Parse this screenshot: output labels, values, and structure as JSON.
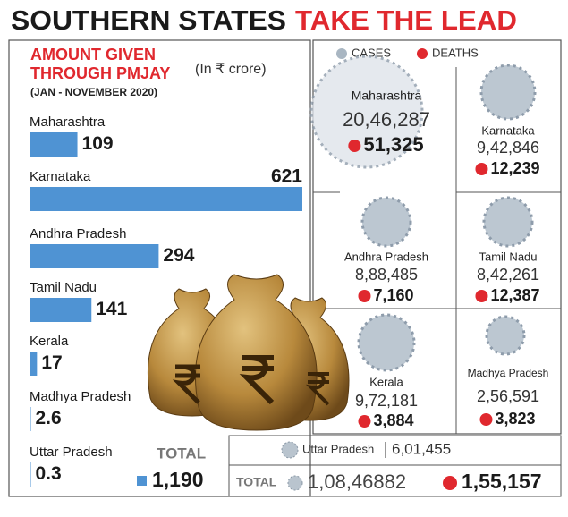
{
  "header": {
    "title_part1": "SOUTHERN STATES",
    "title_part2": "TAKE THE LEAD"
  },
  "chart_data": {
    "type": "bar",
    "orientation": "horizontal",
    "title_line1": "AMOUNT GIVEN",
    "title_line2": "THROUGH PMJAY",
    "subtitle": "(In ₹ crore)",
    "period": "(JAN - NOVEMBER 2020)",
    "categories": [
      "Maharashtra",
      "Karnataka",
      "Andhra Pradesh",
      "Tamil Nadu",
      "Kerala",
      "Madhya Pradesh",
      "Uttar Pradesh"
    ],
    "values": [
      109,
      621,
      294,
      141,
      17,
      2.6,
      0.3
    ],
    "color": "#4f93d3",
    "total": {
      "label": "TOTAL",
      "value": "1,190"
    }
  },
  "legend": {
    "cases": "CASES",
    "deaths": "DEATHS"
  },
  "states": [
    {
      "name": "Maharashtra",
      "cases": "20,46,287",
      "deaths": "51,325"
    },
    {
      "name": "Karnataka",
      "cases": "9,42,846",
      "deaths": "12,239"
    },
    {
      "name": "Andhra Pradesh",
      "cases": "8,88,485",
      "deaths": "7,160"
    },
    {
      "name": "Tamil Nadu",
      "cases": "8,42,261",
      "deaths": "12,387"
    },
    {
      "name": "Kerala",
      "cases": "9,72,181",
      "deaths": "3,884"
    },
    {
      "name": "Madhya Pradesh",
      "cases": "2,56,591",
      "deaths": "3,823"
    }
  ],
  "uttar_pradesh": {
    "name": "Uttar Pradesh",
    "cases": "6,01,455"
  },
  "totals": {
    "label": "TOTAL",
    "cases": "1,08,46882",
    "deaths": "1,55,157"
  }
}
